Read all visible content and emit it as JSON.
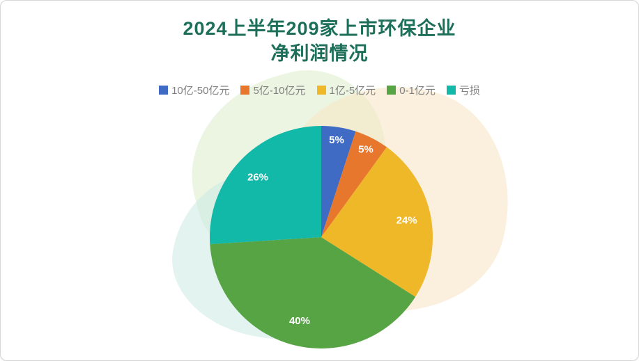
{
  "chart_data": {
    "type": "pie",
    "title": "2024上半年209家上市环保企业\n净利润情况",
    "legend_position": "top",
    "direction": "clockwise",
    "start_angle_deg": 0,
    "series": [
      {
        "label": "10亿-50亿元",
        "value": 5,
        "data_label": "5%",
        "color": "#3F6BC5"
      },
      {
        "label": "5亿-10亿元",
        "value": 5,
        "data_label": "5%",
        "color": "#E8772E"
      },
      {
        "label": "1亿-5亿元",
        "value": 24,
        "data_label": "24%",
        "color": "#EFB829"
      },
      {
        "label": "0-1亿元",
        "value": 40,
        "data_label": "40%",
        "color": "#57A444"
      },
      {
        "label": "亏损",
        "value": 26,
        "data_label": "26%",
        "color": "#12B8A8"
      }
    ]
  },
  "style": {
    "title_color": "#1D6F5A",
    "legend_text_color": "#808080",
    "data_label_color": "#FFFFFF",
    "card_border_color": "#D6D6D6",
    "decor_leaf_cream": "#F7E3C3",
    "decor_leaf_green": "#DCEDCB",
    "decor_leaf_teal": "#CBE9E4"
  }
}
